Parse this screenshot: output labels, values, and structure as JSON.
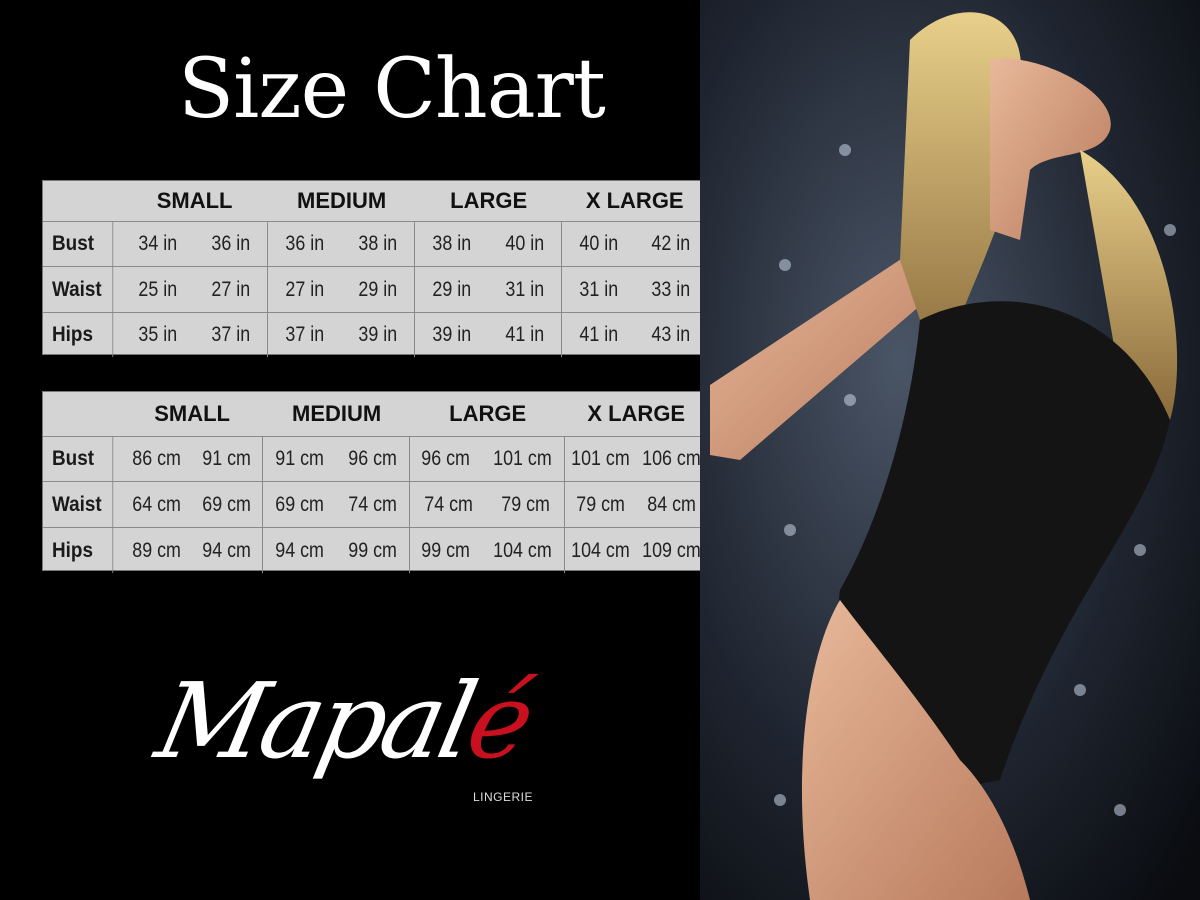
{
  "title": "Size Chart",
  "tables": [
    {
      "headers": [
        "SMALL",
        "MEDIUM",
        "LARGE",
        "X LARGE"
      ],
      "rows": [
        {
          "label": "Bust",
          "values": [
            "34 in",
            "36 in",
            "36 in",
            "38 in",
            "38 in",
            "40 in",
            "40 in",
            "42 in"
          ]
        },
        {
          "label": "Waist",
          "values": [
            "25 in",
            "27 in",
            "27 in",
            "29 in",
            "29 in",
            "31 in",
            "31 in",
            "33 in"
          ]
        },
        {
          "label": "Hips",
          "values": [
            "35 in",
            "37 in",
            "37 in",
            "39 in",
            "39 in",
            "41 in",
            "41 in",
            "43 in"
          ]
        }
      ]
    },
    {
      "headers": [
        "SMALL",
        "MEDIUM",
        "LARGE",
        "X LARGE"
      ],
      "rows": [
        {
          "label": "Bust",
          "values": [
            "86 cm",
            "91 cm",
            "91 cm",
            "96 cm",
            "96 cm",
            "101 cm",
            "101 cm",
            "106 cm"
          ]
        },
        {
          "label": "Waist",
          "values": [
            "64 cm",
            "69 cm",
            "69 cm",
            "74 cm",
            "74 cm",
            "79 cm",
            "79 cm",
            "84 cm"
          ]
        },
        {
          "label": "Hips",
          "values": [
            "89 cm",
            "94 cm",
            "94 cm",
            "99 cm",
            "99 cm",
            "104 cm",
            "104 cm",
            "109 cm"
          ]
        }
      ]
    }
  ],
  "logo": {
    "text_main": "Mapal",
    "text_accent": "é",
    "subtitle": "LINGERIE",
    "accent_color": "#c8101e"
  },
  "colors": {
    "background": "#000000",
    "table_bg": "#d4d4d4"
  }
}
